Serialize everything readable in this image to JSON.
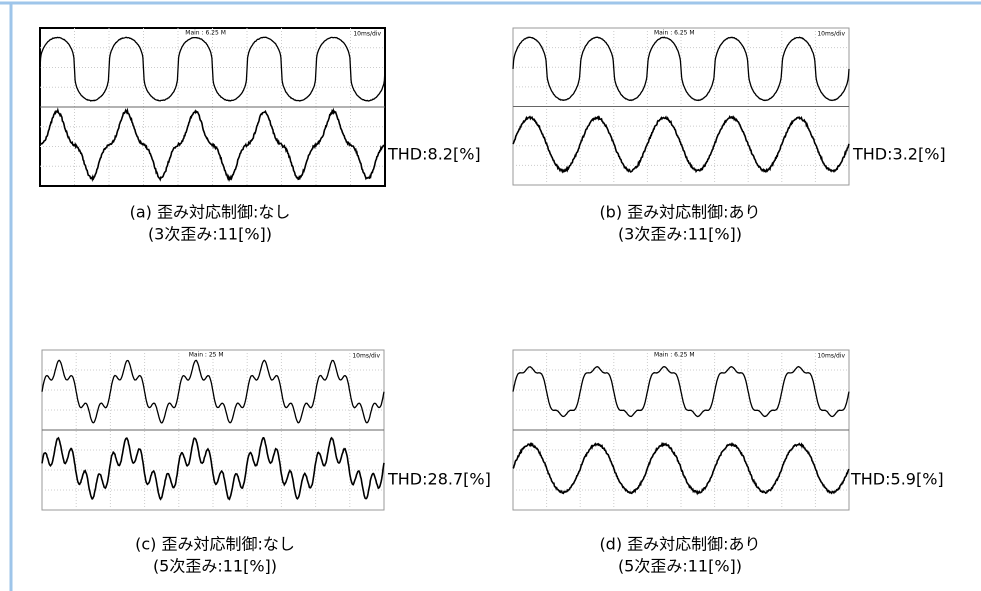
{
  "panels": [
    {
      "scope_main": "Main : 6.25 M",
      "scope_div": "10ms/div",
      "thd": "THD:8.2[%]",
      "label": "(a) 歪み対応制御:なし",
      "condition": "(3次歪み:11[%])"
    },
    {
      "scope_main": "Main : 6.25 M",
      "scope_div": "10ms/div",
      "thd": "THD:3.2[%]",
      "label": "(b) 歪み対応制御:あり",
      "condition": "(3次歪み:11[%])"
    },
    {
      "scope_main": "Main : 25 M",
      "scope_div": "10ms/div",
      "thd": "THD:28.7[%]",
      "label": "(c) 歪み対応制御:なし",
      "condition": "(5次歪み:11[%])"
    },
    {
      "scope_main": "Main : 6.25 M",
      "scope_div": "10ms/div",
      "thd": "THD:5.9[%]",
      "label": "(d) 歪み対応制御:あり",
      "condition": "(5次歪み:11[%])"
    }
  ]
}
